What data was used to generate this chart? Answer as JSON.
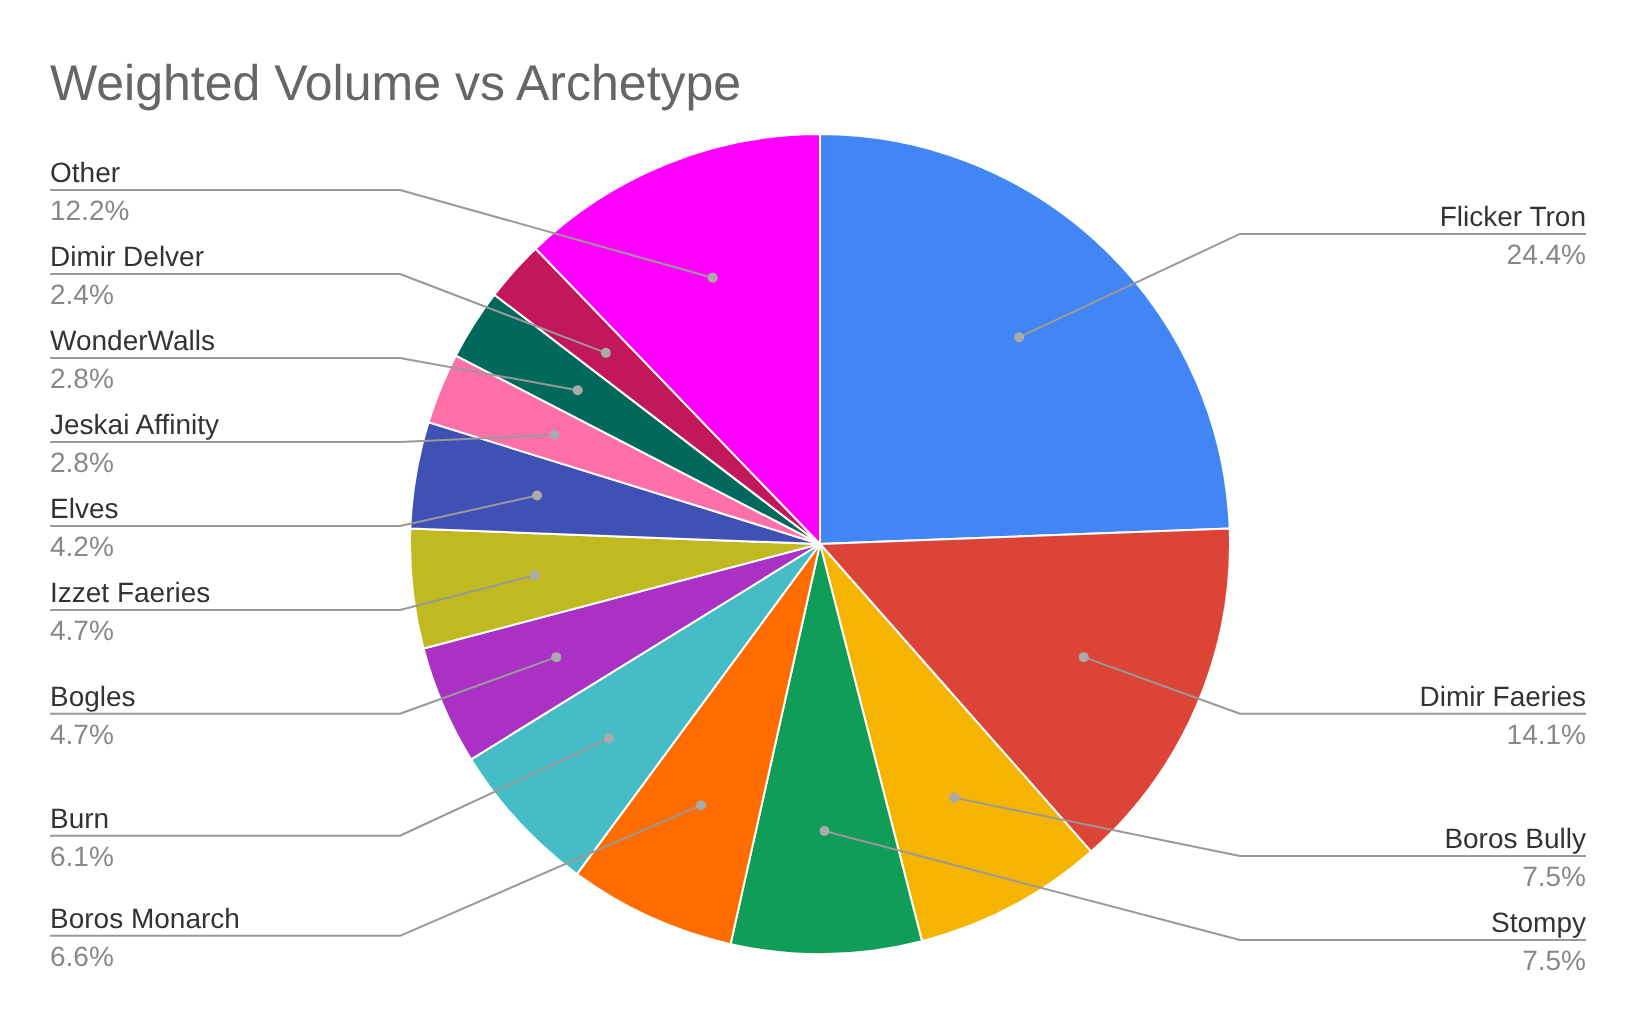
{
  "chart_data": {
    "type": "pie",
    "title": "Weighted Volume vs Archetype",
    "categories": [
      "Flicker Tron",
      "Dimir Faeries",
      "Boros Bully",
      "Stompy",
      "Boros Monarch",
      "Burn",
      "Bogles",
      "Izzet Faeries",
      "Elves",
      "Jeskai Affinity",
      "WonderWalls",
      "Dimir Delver",
      "Other"
    ],
    "values": [
      24.4,
      14.1,
      7.5,
      7.5,
      6.6,
      6.1,
      4.7,
      4.7,
      4.2,
      2.8,
      2.8,
      2.4,
      12.2
    ],
    "value_labels": [
      "24.4%",
      "14.1%",
      "7.5%",
      "7.5%",
      "6.6%",
      "6.1%",
      "4.7%",
      "4.7%",
      "4.2%",
      "2.8%",
      "2.8%",
      "2.4%",
      "12.2%"
    ],
    "colors": [
      "#4285f4",
      "#db4437",
      "#f4b400",
      "#0f9d58",
      "#ff6d01",
      "#46bdc6",
      "#ab30c4",
      "#c0b91f",
      "#3f51b5",
      "#ff6fa8",
      "#00695c",
      "#c2185b",
      "#ff00ff"
    ]
  }
}
